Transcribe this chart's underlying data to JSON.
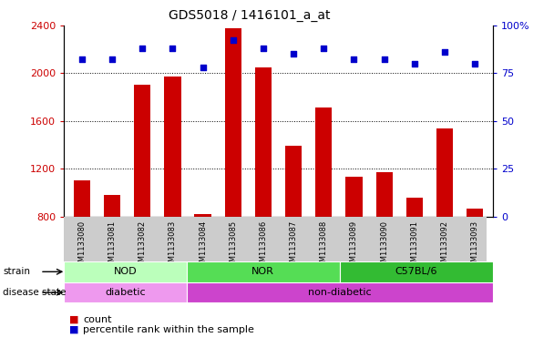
{
  "title": "GDS5018 / 1416101_a_at",
  "samples": [
    "GSM1133080",
    "GSM1133081",
    "GSM1133082",
    "GSM1133083",
    "GSM1133084",
    "GSM1133085",
    "GSM1133086",
    "GSM1133087",
    "GSM1133088",
    "GSM1133089",
    "GSM1133090",
    "GSM1133091",
    "GSM1133092",
    "GSM1133093"
  ],
  "counts": [
    1100,
    980,
    1900,
    1970,
    820,
    2370,
    2050,
    1390,
    1710,
    1130,
    1170,
    960,
    1540,
    870
  ],
  "percentiles": [
    82,
    82,
    88,
    88,
    78,
    92,
    88,
    85,
    88,
    82,
    82,
    80,
    86,
    80
  ],
  "ylim_left": [
    800,
    2400
  ],
  "ylim_right": [
    0,
    100
  ],
  "yticks_left": [
    800,
    1200,
    1600,
    2000,
    2400
  ],
  "yticks_right": [
    0,
    25,
    50,
    75,
    100
  ],
  "bar_color": "#cc0000",
  "dot_color": "#0000cc",
  "strain_groups": [
    {
      "label": "NOD",
      "start": 0,
      "end": 3,
      "color": "#bbffbb"
    },
    {
      "label": "NOR",
      "start": 4,
      "end": 8,
      "color": "#55dd55"
    },
    {
      "label": "C57BL/6",
      "start": 9,
      "end": 13,
      "color": "#33bb33"
    }
  ],
  "disease_groups": [
    {
      "label": "diabetic",
      "start": 0,
      "end": 3,
      "color": "#ee99ee"
    },
    {
      "label": "non-diabetic",
      "start": 4,
      "end": 13,
      "color": "#cc44cc"
    }
  ],
  "strain_row_label": "strain",
  "disease_row_label": "disease state",
  "legend_count_label": "count",
  "legend_percentile_label": "percentile rank within the sample",
  "tick_color_left": "#cc0000",
  "tick_color_right": "#0000cc",
  "xtick_bg_color": "#cccccc"
}
